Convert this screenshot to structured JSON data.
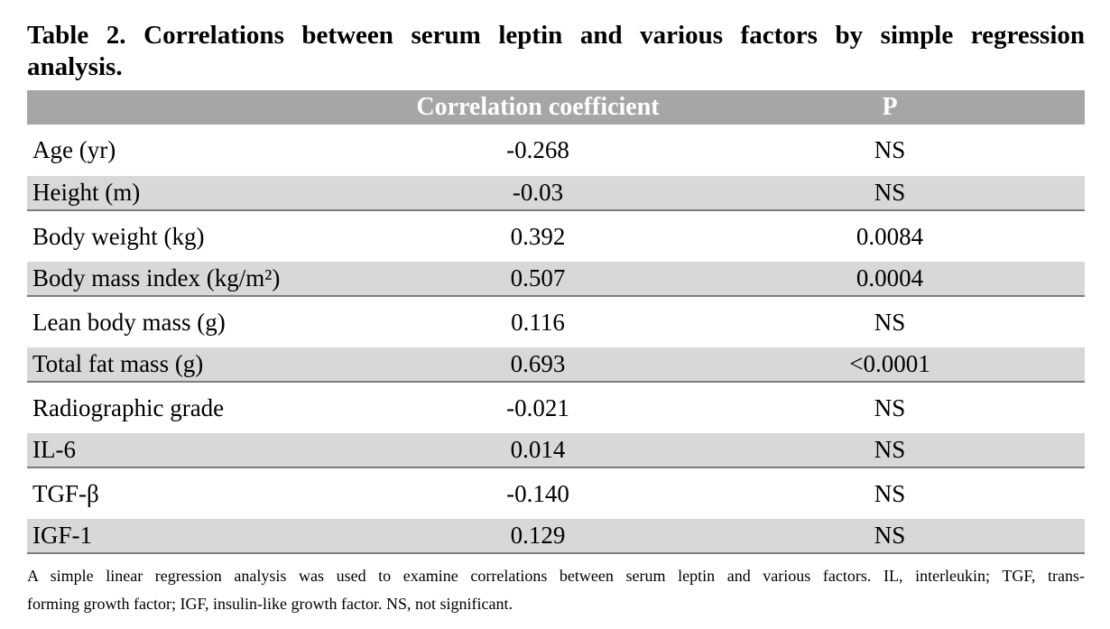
{
  "title": {
    "line1": "Table 2. Correlations between serum leptin and various factors by simple regression",
    "line2": "analysis."
  },
  "table": {
    "column_headers": {
      "factor": "",
      "coefficient": "Correlation coefficient",
      "p": "P"
    },
    "rows": [
      {
        "factor": "Age (yr)",
        "coefficient": "-0.268",
        "p": "NS"
      },
      {
        "factor": "Height (m)",
        "coefficient": "-0.03",
        "p": "NS"
      },
      {
        "factor": "Body weight (kg)",
        "coefficient": "0.392",
        "p": "0.0084"
      },
      {
        "factor": "Body mass index (kg/m²)",
        "coefficient": "0.507",
        "p": "0.0004"
      },
      {
        "factor": "Lean body mass (g)",
        "coefficient": "0.116",
        "p": "NS"
      },
      {
        "factor": "Total fat mass (g)",
        "coefficient": "0.693",
        "p": "<0.0001"
      },
      {
        "factor": "Radiographic grade",
        "coefficient": "-0.021",
        "p": "NS"
      },
      {
        "factor": "IL-6",
        "coefficient": "0.014",
        "p": "NS"
      },
      {
        "factor": "TGF-β",
        "coefficient": "-0.140",
        "p": "NS"
      },
      {
        "factor": "IGF-1",
        "coefficient": "0.129",
        "p": "NS"
      }
    ]
  },
  "footnote": {
    "line1": "A simple linear regression analysis was used to examine correlations between serum leptin and various factors. IL, interleukin; TGF, trans-",
    "line2": "forming growth factor; IGF, insulin-like growth factor. NS, not significant."
  },
  "colors": {
    "header_background": "#a6a6a6",
    "header_text": "#ffffff",
    "stripe_background": "#d8d8d8",
    "rule": "#7c7c7c",
    "text": "#000000",
    "page_background": "#ffffff"
  }
}
